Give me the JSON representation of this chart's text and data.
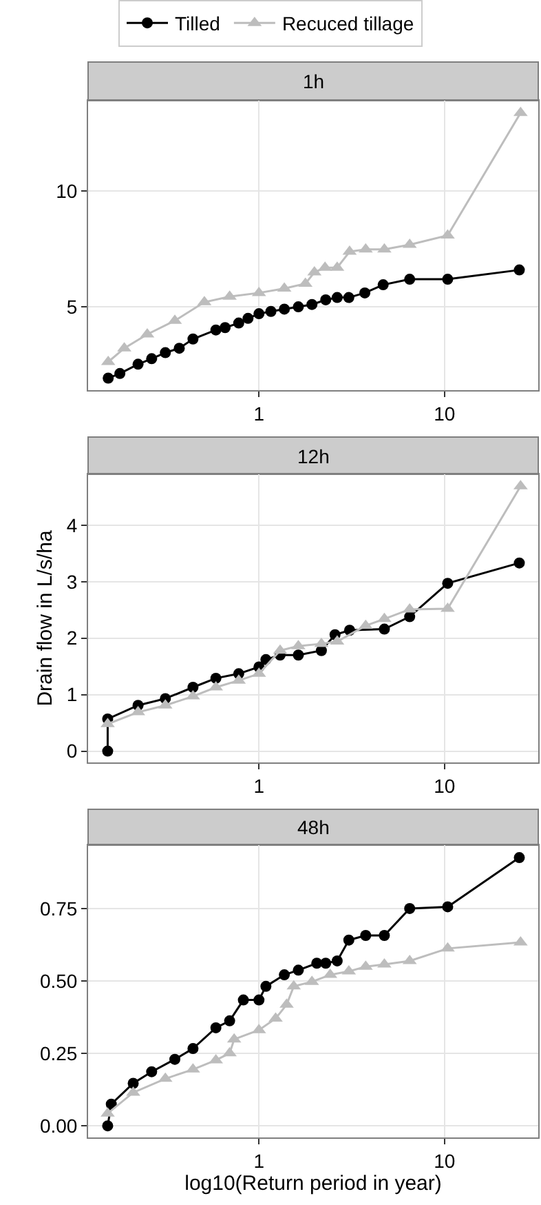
{
  "chart_data": [
    {
      "type": "line",
      "title": "1h",
      "legend": "top",
      "grid": true,
      "log": "x",
      "xlim": [
        0.12,
        32
      ],
      "xticks": [
        1,
        10
      ],
      "ylim": [
        1.4,
        13.9
      ],
      "yticks": [
        5,
        10
      ],
      "series": [
        {
          "name": "Tilled",
          "color": "#000000",
          "marker": "circle",
          "x": [
            0.154,
            0.178,
            0.223,
            0.264,
            0.313,
            0.372,
            0.441,
            0.586,
            0.657,
            0.778,
            0.873,
            1.0,
            1.16,
            1.37,
            1.63,
            1.93,
            2.29,
            2.64,
            3.05,
            3.72,
            4.67,
            6.49,
            10.4,
            25.3
          ],
          "values": [
            1.92,
            2.12,
            2.52,
            2.76,
            3.02,
            3.21,
            3.61,
            4.0,
            4.1,
            4.3,
            4.5,
            4.7,
            4.8,
            4.9,
            5.0,
            5.1,
            5.3,
            5.4,
            5.4,
            5.6,
            5.95,
            6.19,
            6.19,
            6.59
          ]
        },
        {
          "name": "Recuced tillage",
          "color": "#bdbdbd",
          "marker": "triangle",
          "x": [
            0.154,
            0.188,
            0.25,
            0.352,
            0.508,
            0.695,
            1.0,
            1.37,
            1.78,
            1.99,
            2.27,
            2.64,
            3.08,
            3.76,
            4.74,
            6.49,
            10.4,
            25.7
          ],
          "values": [
            2.62,
            3.21,
            3.81,
            4.4,
            5.2,
            5.44,
            5.6,
            5.79,
            6.0,
            6.49,
            6.69,
            6.69,
            7.38,
            7.48,
            7.48,
            7.68,
            8.08,
            13.37
          ]
        }
      ]
    },
    {
      "type": "line",
      "title": "12h",
      "ylabel": "Drain flow in L/s/ha",
      "grid": true,
      "log": "x",
      "xlim": [
        0.12,
        32
      ],
      "xticks": [
        1,
        10
      ],
      "ylim": [
        -0.2,
        4.9
      ],
      "yticks": [
        0,
        1,
        2,
        3,
        4
      ],
      "series": [
        {
          "color": "#000000",
          "marker": "circle",
          "x": [
            0.153,
            0.153,
            0.223,
            0.313,
            0.441,
            0.586,
            0.778,
            1.0,
            1.09,
            1.3,
            1.63,
            2.17,
            2.57,
            3.08,
            4.74,
            6.49,
            10.4,
            25.3
          ],
          "values": [
            0,
            0.57,
            0.81,
            0.93,
            1.13,
            1.29,
            1.37,
            1.49,
            1.62,
            1.7,
            1.7,
            1.78,
            2.06,
            2.14,
            2.16,
            2.38,
            2.97,
            3.33
          ]
        },
        {
          "color": "#bdbdbd",
          "marker": "triangle",
          "x": [
            0.153,
            0.223,
            0.313,
            0.441,
            0.586,
            0.778,
            1.0,
            1.3,
            1.63,
            2.17,
            2.64,
            3.76,
            4.74,
            6.49,
            10.4,
            25.7
          ],
          "values": [
            0.48,
            0.69,
            0.81,
            0.97,
            1.13,
            1.25,
            1.37,
            1.78,
            1.86,
            1.9,
            1.94,
            2.22,
            2.34,
            2.51,
            2.52,
            4.69
          ]
        }
      ]
    },
    {
      "type": "line",
      "title": "48h",
      "xlabel": "log10(Return period in year)",
      "grid": true,
      "log": "x",
      "xlim": [
        0.12,
        32
      ],
      "xticks": [
        1,
        10
      ],
      "ylim": [
        -0.04,
        0.97
      ],
      "yticks": [
        {
          "value": 0,
          "label": "0.00"
        },
        0.25,
        {
          "value": 0.5,
          "label": "0.50"
        },
        0.75
      ],
      "series": [
        {
          "color": "#000000",
          "marker": "circle",
          "x": [
            0.153,
            0.16,
            0.21,
            0.264,
            0.352,
            0.441,
            0.586,
            0.695,
            0.824,
            1.0,
            1.09,
            1.37,
            1.63,
            2.05,
            2.29,
            2.64,
            3.05,
            3.76,
            4.74,
            6.49,
            10.4,
            25.3
          ],
          "values": [
            0,
            0.075,
            0.147,
            0.187,
            0.23,
            0.267,
            0.339,
            0.363,
            0.435,
            0.435,
            0.482,
            0.522,
            0.538,
            0.562,
            0.562,
            0.57,
            0.642,
            0.658,
            0.658,
            0.751,
            0.757,
            0.927
          ]
        },
        {
          "color": "#bdbdbd",
          "marker": "triangle",
          "x": [
            0.153,
            0.21,
            0.313,
            0.441,
            0.586,
            0.695,
            0.735,
            1.0,
            1.23,
            1.41,
            1.54,
            1.93,
            2.42,
            3.05,
            3.76,
            4.74,
            6.49,
            10.4,
            25.7
          ],
          "values": [
            0.043,
            0.115,
            0.163,
            0.195,
            0.227,
            0.251,
            0.299,
            0.331,
            0.371,
            0.419,
            0.482,
            0.498,
            0.522,
            0.534,
            0.55,
            0.558,
            0.57,
            0.613,
            0.634
          ]
        }
      ]
    }
  ]
}
